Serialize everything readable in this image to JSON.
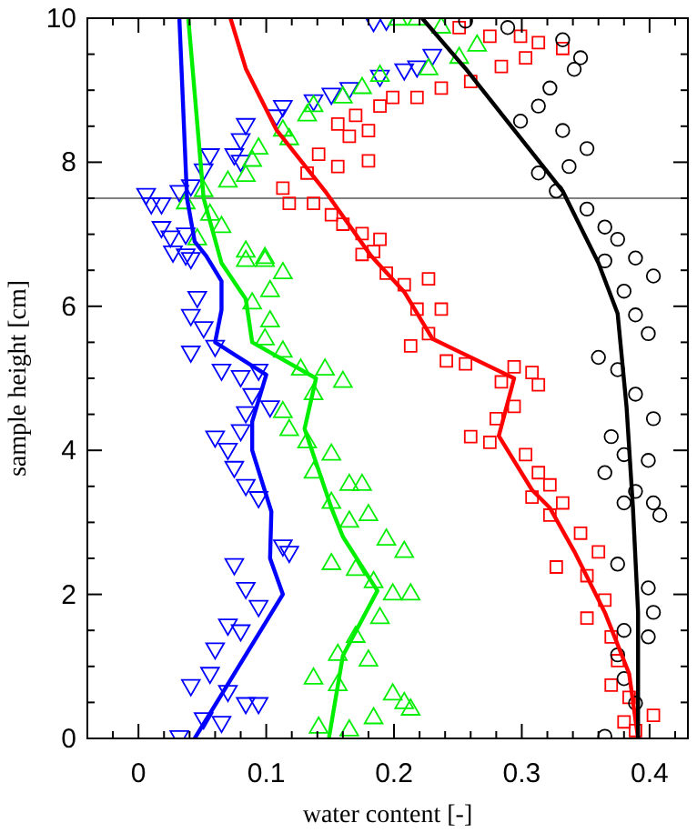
{
  "chart_data": {
    "type": "scatter",
    "xlabel": "water content [-]",
    "ylabel": "sample height [cm]",
    "xlim": [
      -0.04,
      0.43
    ],
    "ylim": [
      0,
      10
    ],
    "xticks": [
      {
        "value": -0.04,
        "label": null
      },
      {
        "value": -0.02,
        "label": null
      },
      0,
      {
        "value": 0.02,
        "label": null
      },
      {
        "value": 0.04,
        "label": null
      },
      {
        "value": 0.06,
        "label": null
      },
      {
        "value": 0.08,
        "label": null
      },
      0.1,
      {
        "value": 0.12,
        "label": null
      },
      {
        "value": 0.14,
        "label": null
      },
      {
        "value": 0.16,
        "label": null
      },
      {
        "value": 0.18,
        "label": null
      },
      0.2,
      {
        "value": 0.22,
        "label": null
      },
      {
        "value": 0.24,
        "label": null
      },
      {
        "value": 0.26,
        "label": null
      },
      {
        "value": 0.28,
        "label": null
      },
      0.3,
      {
        "value": 0.32,
        "label": null
      },
      {
        "value": 0.34,
        "label": null
      },
      {
        "value": 0.36,
        "label": null
      },
      {
        "value": 0.38,
        "label": null
      },
      0.4,
      {
        "value": 0.42,
        "label": null
      }
    ],
    "yticks": [
      0,
      {
        "value": 0.5,
        "label": null
      },
      2,
      {
        "value": 1,
        "label": null
      },
      {
        "value": 1.5,
        "label": null
      },
      {
        "value": 2.5,
        "label": null
      },
      {
        "value": 3,
        "label": null
      },
      {
        "value": 3.5,
        "label": null
      },
      4,
      {
        "value": 4.5,
        "label": null
      },
      {
        "value": 5,
        "label": null
      },
      {
        "value": 5.5,
        "label": null
      },
      6,
      {
        "value": 6.5,
        "label": null
      },
      {
        "value": 7,
        "label": null
      },
      {
        "value": 7.5,
        "label": null
      },
      8,
      {
        "value": 8.5,
        "label": null
      },
      {
        "value": 9,
        "label": null
      },
      {
        "value": 9.5,
        "label": null
      },
      10
    ],
    "grid": false,
    "ref_lines": [
      {
        "axis": "y",
        "value": 7.5,
        "color": "#808080"
      }
    ],
    "series": [
      {
        "color": "#0000ff",
        "marker": "triangle-down",
        "x": [
          0.184,
          0.194,
          0.218,
          0.23,
          0.208,
          0.189,
          0.165,
          0.151,
          0.137,
          0.113,
          0.108,
          0.084,
          0.08,
          0.075,
          0.056,
          0.051,
          0.08,
          0.041,
          0.006,
          0.01,
          0.018,
          0.032,
          0.018,
          0.025,
          0.037,
          0.027,
          0.041,
          0.037,
          0.046,
          0.041,
          0.051,
          0.041,
          0.06,
          0.065,
          0.08,
          0.094,
          0.089,
          0.084,
          0.103,
          0.06,
          0.07,
          0.075,
          0.084,
          0.094,
          0.08,
          0.113,
          0.118,
          0.075,
          0.084,
          0.094,
          0.07,
          0.08,
          0.06,
          0.041,
          0.056,
          0.07,
          0.084,
          0.094,
          0.051,
          0.032,
          0.065
        ],
        "values": [
          9.96,
          9.98,
          9.33,
          9.49,
          9.29,
          9.2,
          9.03,
          8.95,
          8.86,
          8.78,
          8.65,
          8.53,
          8.32,
          8.11,
          8.11,
          7.9,
          8.02,
          7.68,
          7.56,
          7.43,
          7.43,
          7.6,
          7.1,
          6.97,
          7.01,
          6.76,
          6.67,
          6.72,
          6.13,
          5.88,
          5.71,
          5.37,
          5.45,
          5.12,
          5.03,
          5.12,
          4.78,
          4.53,
          4.61,
          4.19,
          4.02,
          3.77,
          3.52,
          3.35,
          4.28,
          2.68,
          2.59,
          2.42,
          2.09,
          1.84,
          1.58,
          1.5,
          1.25,
          0.74,
          0.91,
          0.66,
          0.49,
          0.49,
          0.28,
          0.03,
          0.23
        ]
      },
      {
        "color": "#00ee00",
        "marker": "triangle",
        "x": [
          0.203,
          0.218,
          0.237,
          0.265,
          0.251,
          0.227,
          0.189,
          0.175,
          0.16,
          0.137,
          0.132,
          0.113,
          0.118,
          0.094,
          0.089,
          0.084,
          0.07,
          0.051,
          0.037,
          0.056,
          0.046,
          0.065,
          0.084,
          0.099,
          0.084,
          0.099,
          0.113,
          0.103,
          0.089,
          0.103,
          0.099,
          0.113,
          0.127,
          0.146,
          0.16,
          0.137,
          0.113,
          0.118,
          0.132,
          0.151,
          0.137,
          0.165,
          0.151,
          0.175,
          0.165,
          0.18,
          0.194,
          0.208,
          0.151,
          0.17,
          0.184,
          0.199,
          0.213,
          0.189,
          0.17,
          0.156,
          0.18,
          0.137,
          0.156,
          0.199,
          0.208,
          0.213,
          0.184,
          0.141,
          0.165
        ],
        "values": [
          9.98,
          9.98,
          9.87,
          9.62,
          9.45,
          9.29,
          9.2,
          9.03,
          8.9,
          8.78,
          8.65,
          8.44,
          8.32,
          8.19,
          8.02,
          7.81,
          7.73,
          7.6,
          7.43,
          7.27,
          6.93,
          7.1,
          6.76,
          6.67,
          6.63,
          6.63,
          6.46,
          6.21,
          6.04,
          5.79,
          5.54,
          5.37,
          5.12,
          5.12,
          4.95,
          4.78,
          4.53,
          4.28,
          4.11,
          3.94,
          3.69,
          3.52,
          3.27,
          3.52,
          3.01,
          3.1,
          2.76,
          2.59,
          2.42,
          2.34,
          2.17,
          2.0,
          2.0,
          1.67,
          1.41,
          1.16,
          1.08,
          0.83,
          0.74,
          0.61,
          0.49,
          0.4,
          0.28,
          0.15,
          0.11
        ]
      },
      {
        "color": "#ff0000",
        "marker": "square",
        "x": [
          0.251,
          0.275,
          0.299,
          0.313,
          0.332,
          0.303,
          0.284,
          0.26,
          0.237,
          0.218,
          0.199,
          0.189,
          0.17,
          0.156,
          0.165,
          0.18,
          0.141,
          0.156,
          0.18,
          0.132,
          0.113,
          0.118,
          0.137,
          0.151,
          0.16,
          0.175,
          0.189,
          0.184,
          0.175,
          0.194,
          0.208,
          0.227,
          0.218,
          0.227,
          0.237,
          0.213,
          0.241,
          0.256,
          0.294,
          0.308,
          0.284,
          0.313,
          0.294,
          0.28,
          0.26,
          0.275,
          0.303,
          0.313,
          0.322,
          0.332,
          0.308,
          0.322,
          0.346,
          0.36,
          0.327,
          0.351,
          0.365,
          0.351,
          0.37,
          0.375,
          0.37,
          0.384,
          0.403,
          0.38,
          0.389
        ],
        "values": [
          9.87,
          9.75,
          9.75,
          9.66,
          9.58,
          9.45,
          9.33,
          9.12,
          9.03,
          8.9,
          8.9,
          8.78,
          8.65,
          8.53,
          8.36,
          8.44,
          8.11,
          7.94,
          8.02,
          7.85,
          7.64,
          7.43,
          7.43,
          7.27,
          7.14,
          7.01,
          6.93,
          6.76,
          6.72,
          6.46,
          6.3,
          6.38,
          5.96,
          5.62,
          5.96,
          5.45,
          5.24,
          5.2,
          5.16,
          5.08,
          4.95,
          4.91,
          4.61,
          4.44,
          4.19,
          4.11,
          3.94,
          3.69,
          3.52,
          3.27,
          3.35,
          3.1,
          2.85,
          2.59,
          2.38,
          2.26,
          1.92,
          1.67,
          1.41,
          1.08,
          0.74,
          0.57,
          0.32,
          0.23,
          0.11
        ]
      },
      {
        "color": "#000000",
        "marker": "circle",
        "x": [
          0.256,
          0.289,
          0.332,
          0.346,
          0.341,
          0.322,
          0.313,
          0.299,
          0.332,
          0.351,
          0.337,
          0.313,
          0.327,
          0.351,
          0.365,
          0.375,
          0.389,
          0.365,
          0.403,
          0.38,
          0.389,
          0.36,
          0.375,
          0.399,
          0.389,
          0.403,
          0.37,
          0.38,
          0.399,
          0.365,
          0.389,
          0.403,
          0.38,
          0.408,
          0.375,
          0.399,
          0.403,
          0.38,
          0.399,
          0.375,
          0.38,
          0.389,
          0.365
        ],
        "values": [
          9.96,
          9.87,
          9.7,
          9.45,
          9.29,
          9.03,
          8.78,
          8.57,
          8.44,
          8.19,
          7.94,
          7.85,
          7.6,
          7.35,
          7.1,
          6.93,
          6.67,
          6.63,
          6.42,
          6.21,
          5.88,
          5.29,
          5.12,
          5.62,
          4.78,
          4.44,
          4.19,
          3.94,
          3.86,
          3.69,
          3.43,
          3.27,
          3.27,
          3.1,
          2.42,
          2.09,
          1.75,
          1.5,
          1.41,
          1.16,
          0.83,
          0.49,
          0.03
        ]
      },
      {
        "type": "line",
        "color": "#0000ff",
        "marker": "none",
        "x": [
          0.032,
          0.038,
          0.044,
          0.053,
          0.065,
          0.065,
          0.06,
          0.1,
          0.089,
          0.089,
          0.104,
          0.103,
          0.113,
          0.044
        ],
        "values": [
          10,
          7.5,
          6.9,
          6.7,
          6.35,
          5.95,
          5.5,
          5.05,
          4.4,
          4.0,
          3.15,
          2.5,
          2.0,
          0
        ]
      },
      {
        "type": "line",
        "color": "#00ee00",
        "marker": "none",
        "x": [
          0.039,
          0.051,
          0.065,
          0.084,
          0.089,
          0.139,
          0.13,
          0.151,
          0.16,
          0.187,
          0.16,
          0.149
        ],
        "values": [
          10,
          7.5,
          6.6,
          6.1,
          5.5,
          5.0,
          4.3,
          3.2,
          2.8,
          2.05,
          1.15,
          0
        ]
      },
      {
        "type": "line",
        "color": "#ff0000",
        "marker": "none",
        "x": [
          0.072,
          0.084,
          0.108,
          0.146,
          0.182,
          0.208,
          0.23,
          0.294,
          0.282,
          0.308,
          0.322,
          0.341,
          0.365,
          0.384,
          0.391
        ],
        "values": [
          10,
          9.3,
          8.45,
          7.6,
          6.7,
          6.2,
          5.55,
          5.0,
          4.2,
          3.45,
          3.2,
          2.6,
          1.75,
          0.9,
          0
        ]
      },
      {
        "type": "line",
        "color": "#000000",
        "marker": "none",
        "x": [
          0.222,
          0.256,
          0.294,
          0.332,
          0.36,
          0.375,
          0.382,
          0.387,
          0.391,
          0.391
        ],
        "values": [
          10,
          9.3,
          8.45,
          7.6,
          6.6,
          5.9,
          4.6,
          3.2,
          1.75,
          0
        ]
      }
    ]
  }
}
